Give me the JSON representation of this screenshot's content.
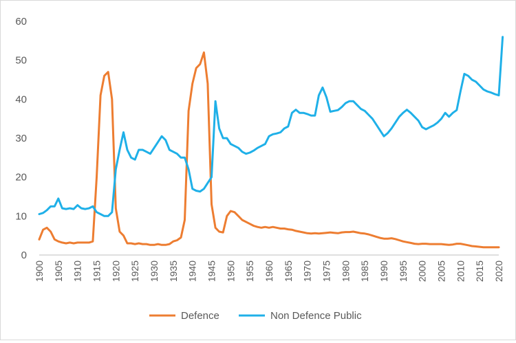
{
  "chart_data": {
    "type": "line",
    "title": "",
    "xlabel": "",
    "ylabel": "",
    "xlim": [
      1900,
      2020
    ],
    "ylim": [
      0,
      60
    ],
    "y_ticks": [
      "0",
      "10",
      "20",
      "30",
      "40",
      "50",
      "60"
    ],
    "x_ticks": [
      "1900",
      "1905",
      "1910",
      "1915",
      "1920",
      "1925",
      "1930",
      "1935",
      "1940",
      "1945",
      "1950",
      "1955",
      "1960",
      "1965",
      "1970",
      "1975",
      "1980",
      "1985",
      "1990",
      "1995",
      "2000",
      "2005",
      "2010",
      "2015",
      "2020"
    ],
    "grid": false,
    "legend_position": "bottom",
    "series": [
      {
        "name": "Defence",
        "color": "#ED7D31",
        "points": [
          [
            1900,
            4
          ],
          [
            1901,
            6.5
          ],
          [
            1902,
            7
          ],
          [
            1903,
            6
          ],
          [
            1904,
            4
          ],
          [
            1905,
            3.5
          ],
          [
            1906,
            3.2
          ],
          [
            1907,
            3
          ],
          [
            1908,
            3.2
          ],
          [
            1909,
            3
          ],
          [
            1910,
            3.2
          ],
          [
            1911,
            3.2
          ],
          [
            1912,
            3.2
          ],
          [
            1913,
            3.2
          ],
          [
            1914,
            3.5
          ],
          [
            1915,
            20
          ],
          [
            1916,
            41
          ],
          [
            1917,
            46
          ],
          [
            1918,
            47
          ],
          [
            1919,
            40
          ],
          [
            1920,
            12
          ],
          [
            1921,
            6
          ],
          [
            1922,
            5
          ],
          [
            1923,
            3
          ],
          [
            1924,
            3
          ],
          [
            1925,
            2.8
          ],
          [
            1926,
            3
          ],
          [
            1927,
            2.8
          ],
          [
            1928,
            2.8
          ],
          [
            1929,
            2.6
          ],
          [
            1930,
            2.6
          ],
          [
            1931,
            2.8
          ],
          [
            1932,
            2.6
          ],
          [
            1933,
            2.6
          ],
          [
            1934,
            2.8
          ],
          [
            1935,
            3.5
          ],
          [
            1936,
            3.8
          ],
          [
            1937,
            4.5
          ],
          [
            1938,
            9
          ],
          [
            1939,
            37
          ],
          [
            1940,
            44
          ],
          [
            1941,
            48
          ],
          [
            1942,
            49
          ],
          [
            1943,
            52
          ],
          [
            1944,
            44
          ],
          [
            1945,
            13
          ],
          [
            1946,
            7
          ],
          [
            1947,
            6
          ],
          [
            1948,
            5.8
          ],
          [
            1949,
            10
          ],
          [
            1950,
            11.3
          ],
          [
            1951,
            11
          ],
          [
            1952,
            10
          ],
          [
            1953,
            9
          ],
          [
            1954,
            8.5
          ],
          [
            1955,
            8
          ],
          [
            1956,
            7.5
          ],
          [
            1957,
            7.2
          ],
          [
            1958,
            7
          ],
          [
            1959,
            7.2
          ],
          [
            1960,
            7
          ],
          [
            1961,
            7.2
          ],
          [
            1962,
            7
          ],
          [
            1963,
            6.8
          ],
          [
            1964,
            6.8
          ],
          [
            1965,
            6.6
          ],
          [
            1966,
            6.5
          ],
          [
            1967,
            6.2
          ],
          [
            1968,
            6
          ],
          [
            1969,
            5.8
          ],
          [
            1970,
            5.6
          ],
          [
            1971,
            5.5
          ],
          [
            1972,
            5.6
          ],
          [
            1973,
            5.5
          ],
          [
            1974,
            5.6
          ],
          [
            1975,
            5.7
          ],
          [
            1976,
            5.8
          ],
          [
            1977,
            5.7
          ],
          [
            1978,
            5.6
          ],
          [
            1979,
            5.8
          ],
          [
            1980,
            5.9
          ],
          [
            1981,
            5.9
          ],
          [
            1982,
            6
          ],
          [
            1983,
            5.8
          ],
          [
            1984,
            5.6
          ],
          [
            1985,
            5.5
          ],
          [
            1986,
            5.3
          ],
          [
            1987,
            5
          ],
          [
            1988,
            4.7
          ],
          [
            1989,
            4.4
          ],
          [
            1990,
            4.2
          ],
          [
            1991,
            4.2
          ],
          [
            1992,
            4.3
          ],
          [
            1993,
            4.1
          ],
          [
            1994,
            3.8
          ],
          [
            1995,
            3.5
          ],
          [
            1996,
            3.3
          ],
          [
            1997,
            3.1
          ],
          [
            1998,
            2.9
          ],
          [
            1999,
            2.8
          ],
          [
            2000,
            2.9
          ],
          [
            2001,
            2.9
          ],
          [
            2002,
            2.8
          ],
          [
            2003,
            2.8
          ],
          [
            2004,
            2.8
          ],
          [
            2005,
            2.8
          ],
          [
            2006,
            2.7
          ],
          [
            2007,
            2.6
          ],
          [
            2008,
            2.7
          ],
          [
            2009,
            2.9
          ],
          [
            2010,
            2.9
          ],
          [
            2011,
            2.7
          ],
          [
            2012,
            2.5
          ],
          [
            2013,
            2.3
          ],
          [
            2014,
            2.2
          ],
          [
            2015,
            2.1
          ],
          [
            2016,
            2
          ],
          [
            2017,
            2
          ],
          [
            2018,
            2
          ],
          [
            2019,
            2
          ],
          [
            2020,
            2
          ]
        ]
      },
      {
        "name": "Non Defence Public",
        "color": "#1FB0E8",
        "points": [
          [
            1900,
            10.5
          ],
          [
            1901,
            10.8
          ],
          [
            1902,
            11.5
          ],
          [
            1903,
            12.5
          ],
          [
            1904,
            12.5
          ],
          [
            1905,
            14.5
          ],
          [
            1906,
            12
          ],
          [
            1907,
            11.8
          ],
          [
            1908,
            12
          ],
          [
            1909,
            11.8
          ],
          [
            1910,
            12.8
          ],
          [
            1911,
            12
          ],
          [
            1912,
            11.8
          ],
          [
            1913,
            12
          ],
          [
            1914,
            12.5
          ],
          [
            1915,
            11
          ],
          [
            1916,
            10.5
          ],
          [
            1917,
            10
          ],
          [
            1918,
            10
          ],
          [
            1919,
            11
          ],
          [
            1920,
            22
          ],
          [
            1921,
            27
          ],
          [
            1922,
            31.5
          ],
          [
            1923,
            27
          ],
          [
            1924,
            25
          ],
          [
            1925,
            24.5
          ],
          [
            1926,
            27
          ],
          [
            1927,
            27
          ],
          [
            1928,
            26.5
          ],
          [
            1929,
            26
          ],
          [
            1930,
            27.5
          ],
          [
            1931,
            29
          ],
          [
            1932,
            30.5
          ],
          [
            1933,
            29.5
          ],
          [
            1934,
            27
          ],
          [
            1935,
            26.5
          ],
          [
            1936,
            26
          ],
          [
            1937,
            25
          ],
          [
            1938,
            25
          ],
          [
            1939,
            22
          ],
          [
            1940,
            17
          ],
          [
            1941,
            16.5
          ],
          [
            1942,
            16.3
          ],
          [
            1943,
            17
          ],
          [
            1944,
            18.5
          ],
          [
            1945,
            20
          ],
          [
            1946,
            39.5
          ],
          [
            1947,
            32.5
          ],
          [
            1948,
            30
          ],
          [
            1949,
            30
          ],
          [
            1950,
            28.5
          ],
          [
            1951,
            28
          ],
          [
            1952,
            27.5
          ],
          [
            1953,
            26.5
          ],
          [
            1954,
            26
          ],
          [
            1955,
            26.3
          ],
          [
            1956,
            26.8
          ],
          [
            1957,
            27.5
          ],
          [
            1958,
            28
          ],
          [
            1959,
            28.5
          ],
          [
            1960,
            30.5
          ],
          [
            1961,
            31
          ],
          [
            1962,
            31.2
          ],
          [
            1963,
            31.5
          ],
          [
            1964,
            32.5
          ],
          [
            1965,
            33
          ],
          [
            1966,
            36.5
          ],
          [
            1967,
            37.3
          ],
          [
            1968,
            36.5
          ],
          [
            1969,
            36.5
          ],
          [
            1970,
            36.2
          ],
          [
            1971,
            35.8
          ],
          [
            1972,
            35.8
          ],
          [
            1973,
            41
          ],
          [
            1974,
            43
          ],
          [
            1975,
            40.5
          ],
          [
            1976,
            36.8
          ],
          [
            1977,
            37
          ],
          [
            1978,
            37.2
          ],
          [
            1979,
            38
          ],
          [
            1980,
            39
          ],
          [
            1981,
            39.5
          ],
          [
            1982,
            39.5
          ],
          [
            1983,
            38.5
          ],
          [
            1984,
            37.5
          ],
          [
            1985,
            37
          ],
          [
            1986,
            36
          ],
          [
            1987,
            35
          ],
          [
            1988,
            33.5
          ],
          [
            1989,
            32
          ],
          [
            1990,
            30.5
          ],
          [
            1991,
            31.3
          ],
          [
            1992,
            32.5
          ],
          [
            1993,
            34
          ],
          [
            1994,
            35.5
          ],
          [
            1995,
            36.5
          ],
          [
            1996,
            37.3
          ],
          [
            1997,
            36.5
          ],
          [
            1998,
            35.5
          ],
          [
            1999,
            34.5
          ],
          [
            2000,
            32.8
          ],
          [
            2001,
            32.3
          ],
          [
            2002,
            32.8
          ],
          [
            2003,
            33.3
          ],
          [
            2004,
            34
          ],
          [
            2005,
            35
          ],
          [
            2006,
            36.5
          ],
          [
            2007,
            35.5
          ],
          [
            2008,
            36.5
          ],
          [
            2009,
            37.2
          ],
          [
            2010,
            42
          ],
          [
            2011,
            46.5
          ],
          [
            2012,
            46
          ],
          [
            2013,
            45
          ],
          [
            2014,
            44.5
          ],
          [
            2015,
            43.5
          ],
          [
            2016,
            42.5
          ],
          [
            2017,
            42
          ],
          [
            2018,
            41.7
          ],
          [
            2019,
            41.3
          ],
          [
            2020,
            41
          ],
          [
            2021,
            56
          ]
        ]
      }
    ]
  }
}
